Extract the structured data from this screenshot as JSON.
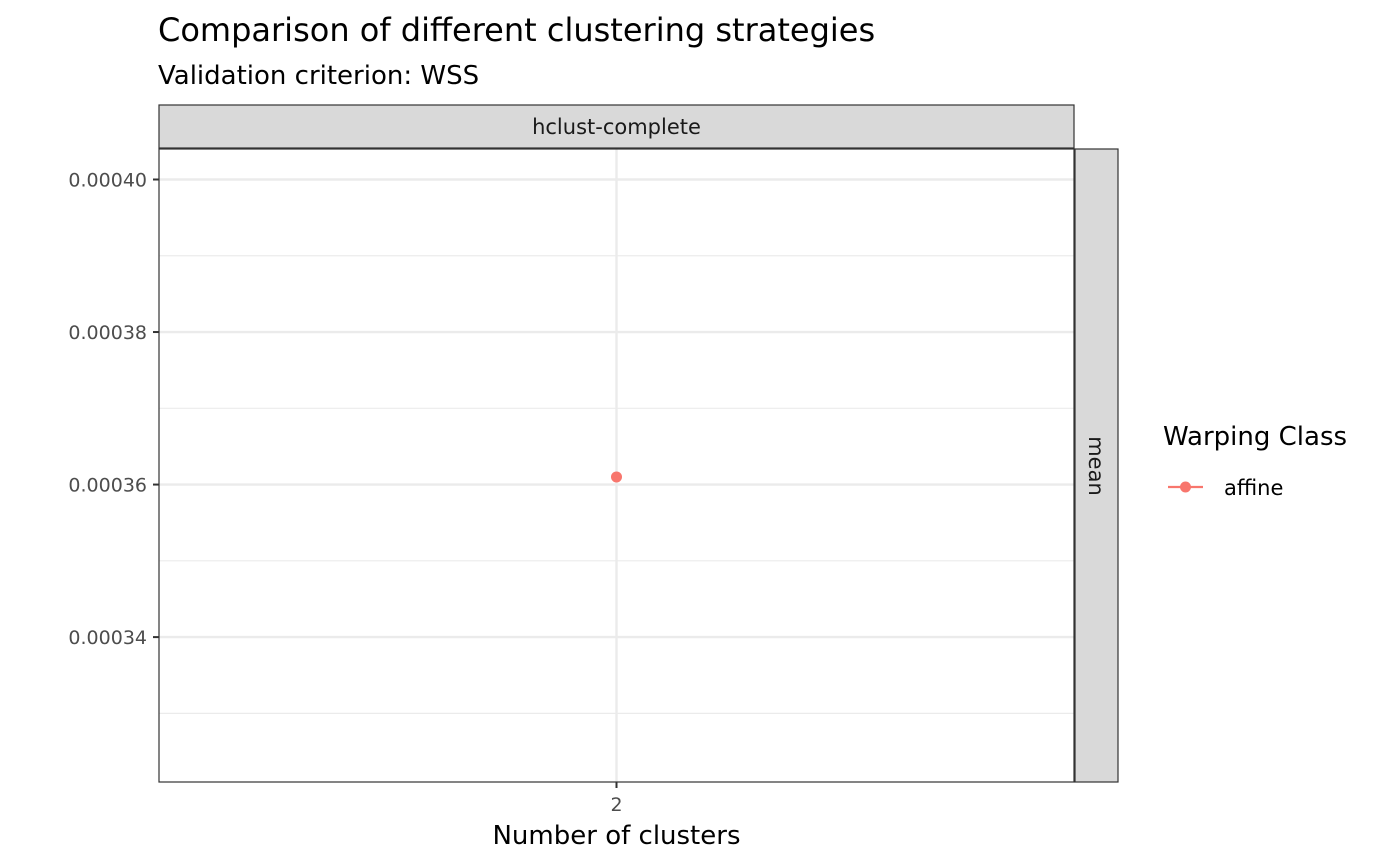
{
  "chart_data": {
    "type": "scatter",
    "title": "Comparison of different clustering strategies",
    "subtitle": "Validation criterion: WSS",
    "xlabel": "Number of clusters",
    "ylabel": "",
    "x_categories": [
      "2"
    ],
    "ylim": [
      0.000321,
      0.000404
    ],
    "y_ticks": [
      0.00034,
      0.00036,
      0.00038,
      0.0004
    ],
    "y_tick_labels": [
      "0.00034",
      "0.00036",
      "0.00038",
      "0.00040"
    ],
    "y_minor_ticks": [
      0.00033,
      0.00035,
      0.00037,
      0.00039
    ],
    "grid": true,
    "facet_col_label": "hclust-complete",
    "facet_row_label": "mean",
    "legend": {
      "title": "Warping Class",
      "position": "right",
      "entries": [
        {
          "label": "affine",
          "color": "#F8766D"
        }
      ]
    },
    "series": [
      {
        "name": "affine",
        "color": "#F8766D",
        "points": [
          {
            "x": "2",
            "y": 0.000361
          }
        ]
      }
    ]
  }
}
